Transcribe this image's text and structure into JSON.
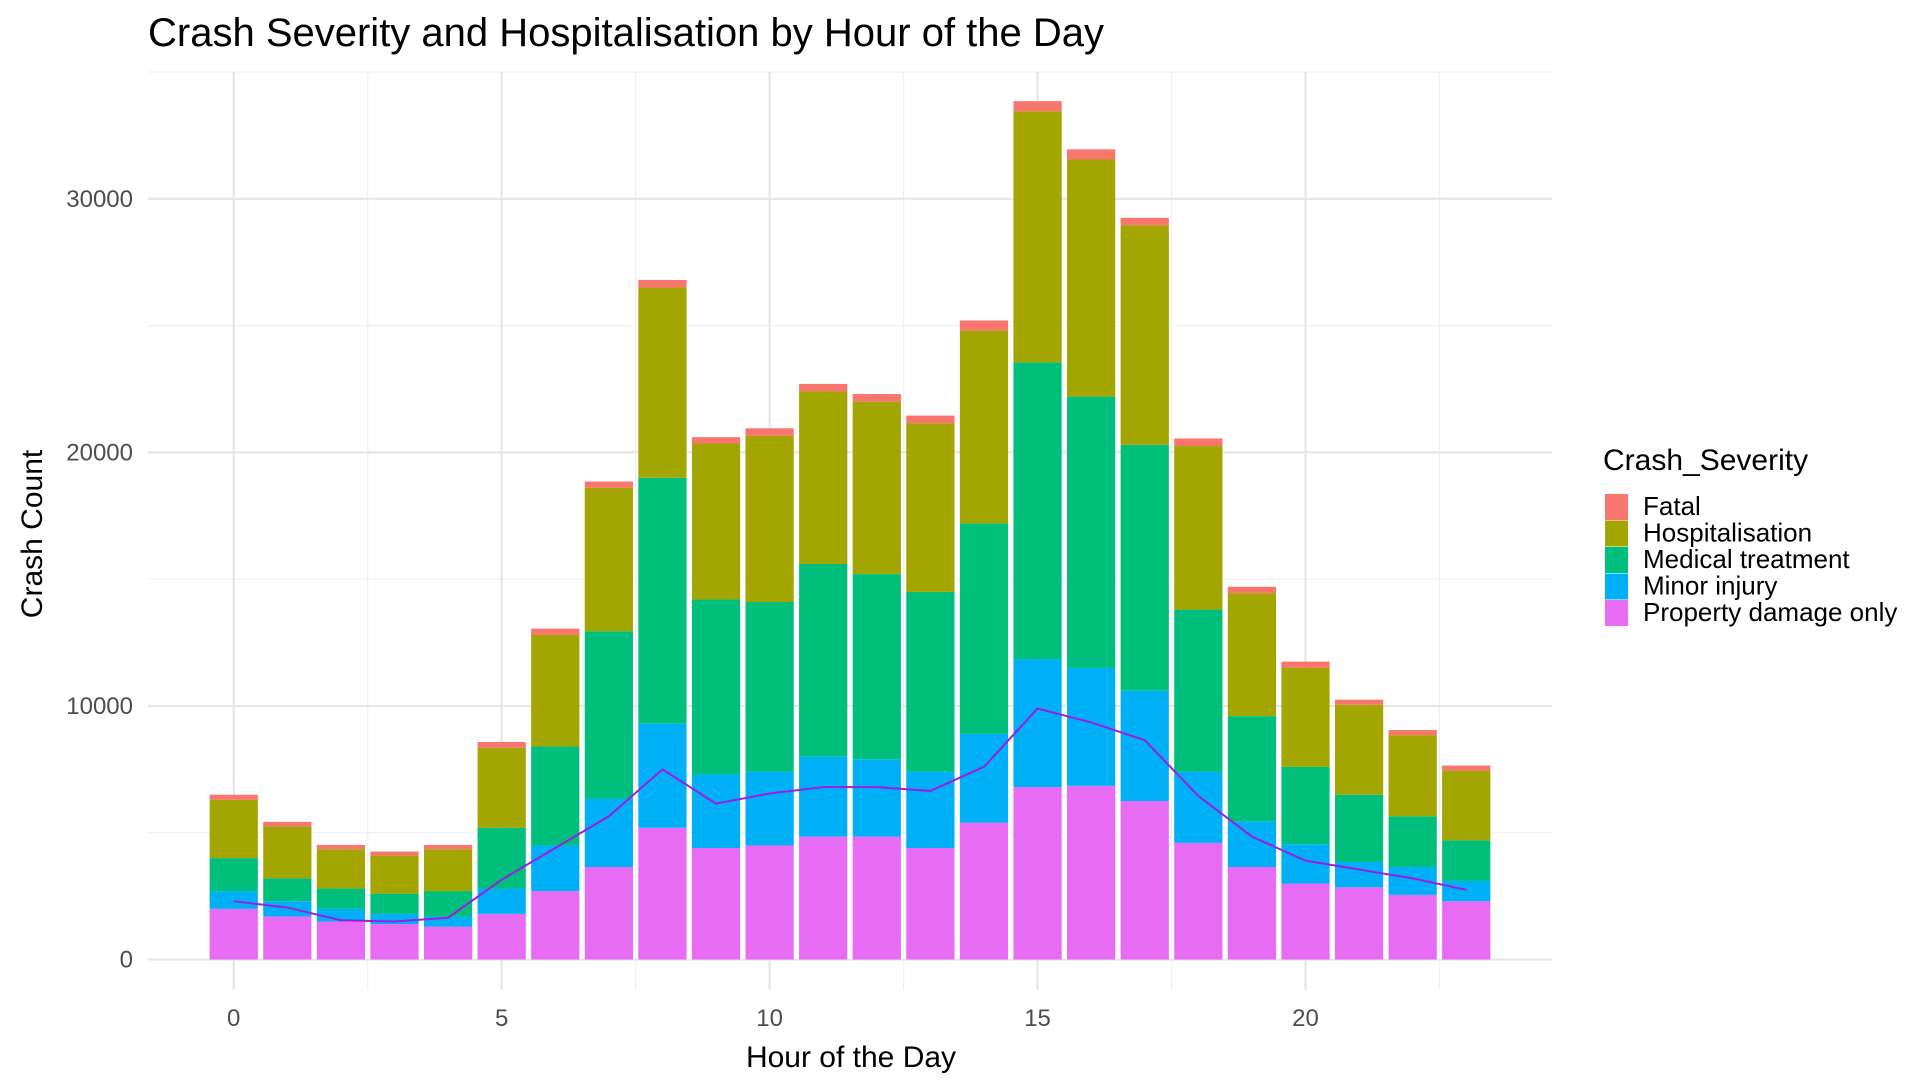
{
  "chart_data": {
    "type": "bar",
    "stacked": true,
    "title": "Crash Severity and Hospitalisation by Hour of the Day",
    "xlabel": "Hour of the Day",
    "ylabel": "Crash Count",
    "x": [
      0,
      1,
      2,
      3,
      4,
      5,
      6,
      7,
      8,
      9,
      10,
      11,
      12,
      13,
      14,
      15,
      16,
      17,
      18,
      19,
      20,
      21,
      22,
      23
    ],
    "xlim": [
      -1.6,
      24.6
    ],
    "ylim": [
      -1200,
      35000
    ],
    "x_ticks": [
      0,
      5,
      10,
      15,
      20
    ],
    "y_ticks": [
      0,
      10000,
      20000,
      30000
    ],
    "x_tick_labels": [
      "0",
      "5",
      "10",
      "15",
      "20"
    ],
    "y_tick_labels": [
      "0",
      "10000",
      "20000",
      "30000"
    ],
    "grid": true,
    "legend": {
      "title": "Crash_Severity",
      "position": "right"
    },
    "series": [
      {
        "name": "Property damage only",
        "color": "#E76BF3",
        "values": [
          2000,
          1700,
          1500,
          1400,
          1300,
          1800,
          2700,
          3650,
          5200,
          4400,
          4500,
          4850,
          4850,
          4400,
          5400,
          6800,
          6850,
          6250,
          4600,
          3650,
          3000,
          2850,
          2550,
          2300
        ]
      },
      {
        "name": "Minor injury",
        "color": "#00B0F6",
        "values": [
          700,
          600,
          500,
          400,
          400,
          1000,
          1800,
          2700,
          4100,
          2900,
          2900,
          3150,
          3050,
          3000,
          3500,
          5050,
          4650,
          4350,
          2800,
          1800,
          1550,
          1000,
          1100,
          800
        ]
      },
      {
        "name": "Medical treatment",
        "color": "#00BF7D",
        "values": [
          1300,
          900,
          800,
          800,
          1000,
          2400,
          3900,
          6600,
          9700,
          6900,
          6700,
          7600,
          7300,
          7100,
          8300,
          11700,
          10700,
          9700,
          6400,
          4150,
          3050,
          2650,
          2000,
          1600
        ]
      },
      {
        "name": "Hospitalisation",
        "color": "#A3A500",
        "values": [
          2300,
          2050,
          1550,
          1500,
          1650,
          3150,
          4400,
          5650,
          7500,
          6150,
          6550,
          6800,
          6800,
          6650,
          7600,
          9900,
          9350,
          8650,
          6450,
          4850,
          3900,
          3550,
          3200,
          2750
        ]
      },
      {
        "name": "Fatal",
        "color": "#F8766D",
        "values": [
          200,
          180,
          170,
          160,
          170,
          230,
          250,
          250,
          300,
          250,
          300,
          300,
          300,
          300,
          400,
          400,
          400,
          300,
          300,
          250,
          250,
          200,
          200,
          200
        ]
      }
    ],
    "line": {
      "color": "#9B1FE0",
      "values": [
        2300,
        2050,
        1550,
        1500,
        1650,
        3150,
        4400,
        5650,
        7500,
        6150,
        6550,
        6800,
        6800,
        6650,
        7600,
        9900,
        9350,
        8650,
        6450,
        4850,
        3900,
        3550,
        3200,
        2750
      ]
    }
  }
}
